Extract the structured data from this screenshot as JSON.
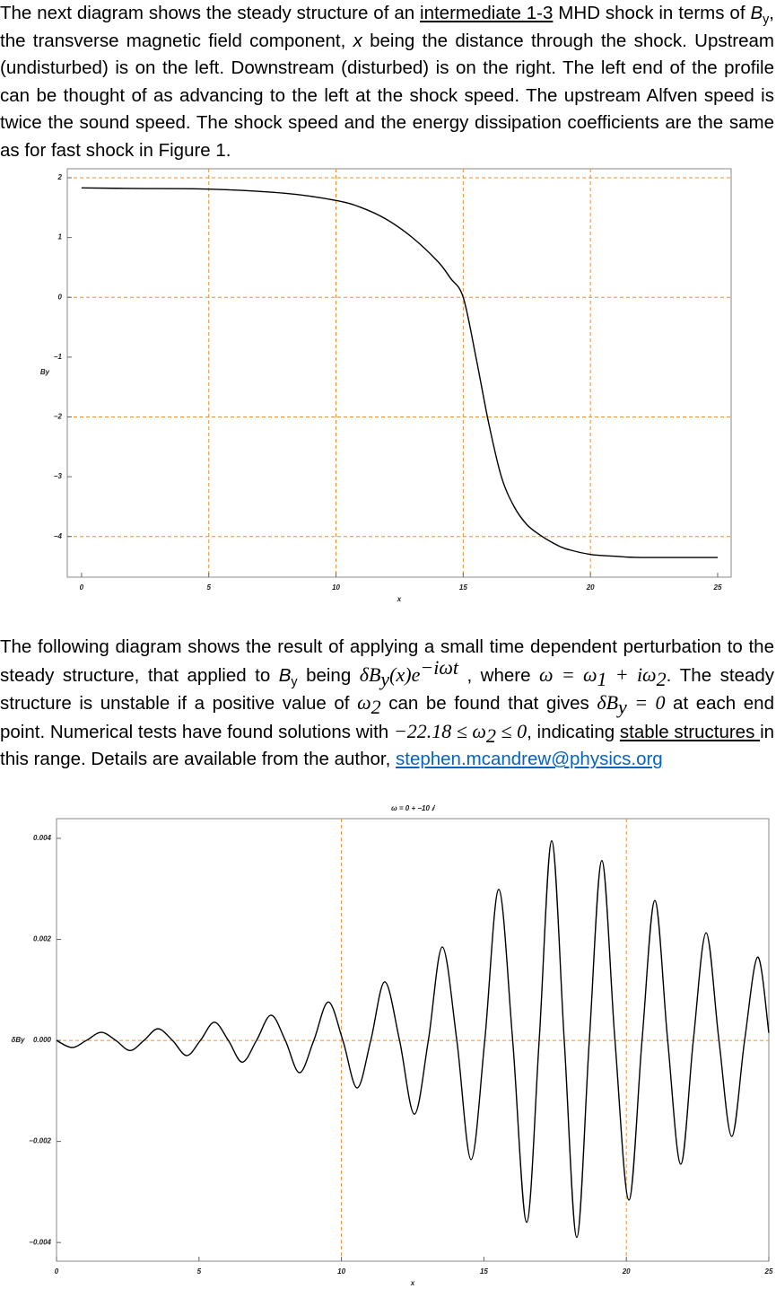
{
  "paragraphs": [
    [
      "The next diagram shows the steady structure of an ",
      "intermediate 1-3",
      " MHD shock in terms of ",
      "B",
      "y",
      ", the transverse magnetic field component, ",
      "x",
      " being the distance through the shock. Upstream (undisturbed) is on the left. Downstream (disturbed) is on the right. The left end of the profile can be thought of as advancing to the left at the shock speed.  The upstream Alfven speed is twice the sound speed. The shock speed and the energy dissipation coefficients are the same as for fast shock in Figure 1."
    ],
    [
      "The following diagram shows the result of applying a small time dependent perturbation to the steady structure, that applied to ",
      "B",
      "y",
      " being ",
      "δB",
      "y",
      "(x)e",
      "−iωt",
      " , where ",
      "ω = ω",
      "1",
      " + iω",
      "2",
      ". The steady structure is unstable if a positive value of ",
      "ω",
      "2",
      " can be found that gives ",
      "δB",
      "y",
      " = 0",
      " at each end point. Numerical tests have found solutions with ",
      "−22.18 ≤ ω",
      "2",
      " ≤ 0",
      ", indicating ",
      "stable structures ",
      "in this range.  Details are available from the author, ",
      "stephen.mcandrew@physics.org"
    ]
  ],
  "chart_data": [
    {
      "type": "line",
      "xlabel": "x",
      "ylabel": "By",
      "color": "#000000",
      "grid_color": "#e69138",
      "x": [
        0,
        2,
        5,
        8,
        10,
        11,
        12,
        13,
        14,
        14.5,
        15,
        15.5,
        16,
        16.5,
        17,
        17.5,
        18,
        18.5,
        19,
        20,
        21,
        22,
        25
      ],
      "values": [
        1.83,
        1.82,
        1.81,
        1.74,
        1.62,
        1.5,
        1.3,
        1.0,
        0.6,
        0.32,
        0,
        -1.0,
        -2.1,
        -3.0,
        -3.5,
        -3.8,
        -3.97,
        -4.1,
        -4.2,
        -4.3,
        -4.33,
        -4.35,
        -4.35
      ],
      "xlim": [
        -0.56,
        25.53
      ],
      "ylim": [
        -4.68,
        2.15
      ],
      "xticks": [
        0,
        5,
        10,
        15,
        20,
        25
      ],
      "yticks": [
        {
          "value": -4,
          "label": "−4"
        },
        {
          "value": -3,
          "label": "−3"
        },
        {
          "value": -2,
          "label": "−2"
        },
        {
          "value": -1,
          "label": "−1"
        },
        0,
        1,
        2
      ],
      "xgrid": [
        5,
        10,
        15,
        20
      ],
      "ygrid": [
        2,
        0,
        -2,
        -4
      ]
    },
    {
      "type": "line",
      "title": "ω = 0  + −10 ⅈ",
      "xlabel": "x",
      "ylabel": "δBy",
      "color": "#000000",
      "grid_color": "#e69138",
      "x": [
        0,
        0.54,
        1.05,
        1.57,
        2.08,
        2.58,
        3.07,
        3.56,
        4.07,
        4.57,
        5.05,
        5.54,
        6.03,
        6.52,
        7.02,
        7.53,
        8.03,
        8.53,
        9.03,
        9.54,
        10.05,
        10.55,
        11.03,
        11.52,
        12.04,
        12.56,
        13.05,
        13.54,
        14.05,
        14.55,
        15.03,
        15.52,
        16.01,
        16.5,
        16.94,
        17.38,
        17.82,
        18.26,
        18.7,
        19.14,
        19.6,
        20.09,
        20.55,
        21.0,
        21.45,
        21.91,
        22.35,
        22.8,
        23.25,
        23.7,
        24.15,
        24.61,
        25
      ],
      "values": [
        0,
        -0.00014,
        0,
        0.00016,
        0,
        -0.0002,
        0,
        0.00023,
        0,
        -0.0003,
        0,
        0.00036,
        0,
        -0.00043,
        0,
        0.0005,
        0,
        -0.00064,
        0,
        0.00076,
        0,
        -0.00094,
        0,
        0.00116,
        0,
        -0.00146,
        0,
        0.00185,
        0,
        -0.00236,
        0,
        0.00299,
        0,
        -0.0036,
        0,
        0.00395,
        0,
        -0.0039,
        0,
        0.00356,
        0,
        -0.00316,
        0,
        0.00277,
        0,
        -0.00245,
        0,
        0.00213,
        0,
        -0.0019,
        0,
        0.00165,
        0.00015
      ],
      "xlim": [
        0,
        25
      ],
      "ylim": [
        -0.00437,
        0.00439
      ],
      "xticks": [
        0,
        5,
        10,
        15,
        20,
        25
      ],
      "yticks": [
        {
          "value": -0.004,
          "label": "−0.004"
        },
        {
          "value": -0.002,
          "label": "−0.002"
        },
        {
          "value": 0,
          "label": "0.000"
        },
        {
          "value": 0.002,
          "label": "0.002"
        },
        {
          "value": 0.004,
          "label": "0.004"
        }
      ],
      "xgrid": [
        10,
        20
      ],
      "ygrid": [
        0
      ]
    }
  ]
}
